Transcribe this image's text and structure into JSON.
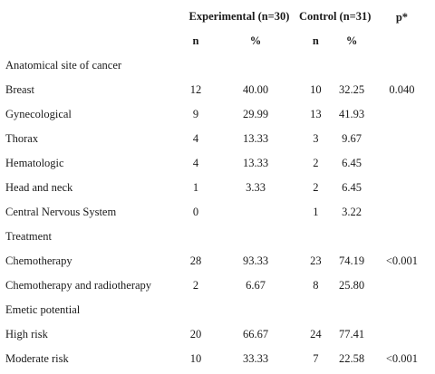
{
  "header": {
    "experimental": "Experimental (n=30)",
    "control": "Control (n=31)",
    "p": "p*",
    "n": "n",
    "pct": "%"
  },
  "rows": [
    {
      "label": "Anatomical site of cancer",
      "en": "",
      "ep": "",
      "cn": "",
      "cp": "",
      "p": ""
    },
    {
      "label": "Breast",
      "en": "12",
      "ep": "40.00",
      "cn": "10",
      "cp": "32.25",
      "p": "0.040"
    },
    {
      "label": "Gynecological",
      "en": "9",
      "ep": "29.99",
      "cn": "13",
      "cp": "41.93",
      "p": ""
    },
    {
      "label": "Thorax",
      "en": "4",
      "ep": "13.33",
      "cn": "3",
      "cp": "9.67",
      "p": ""
    },
    {
      "label": "Hematologic",
      "en": "4",
      "ep": "13.33",
      "cn": "2",
      "cp": "6.45",
      "p": ""
    },
    {
      "label": "Head and neck",
      "en": "1",
      "ep": "3.33",
      "cn": "2",
      "cp": "6.45",
      "p": ""
    },
    {
      "label": "Central Nervous System",
      "en": "0",
      "ep": "",
      "cn": "1",
      "cp": "3.22",
      "p": ""
    },
    {
      "label": "Treatment",
      "en": "",
      "ep": "",
      "cn": "",
      "cp": "",
      "p": ""
    },
    {
      "label": "Chemotherapy",
      "en": "28",
      "ep": "93.33",
      "cn": "23",
      "cp": "74.19",
      "p": "<0.001"
    },
    {
      "label": "Chemotherapy and radiotherapy",
      "en": "2",
      "ep": "6.67",
      "cn": "8",
      "cp": "25.80",
      "p": ""
    },
    {
      "label": "Emetic potential",
      "en": "",
      "ep": "",
      "cn": "",
      "cp": "",
      "p": ""
    },
    {
      "label": "High risk",
      "en": "20",
      "ep": "66.67",
      "cn": "24",
      "cp": "77.41",
      "p": ""
    },
    {
      "label": "Moderate risk",
      "en": "10",
      "ep": "33.33",
      "cn": "7",
      "cp": "22.58",
      "p": "<0.001"
    }
  ]
}
